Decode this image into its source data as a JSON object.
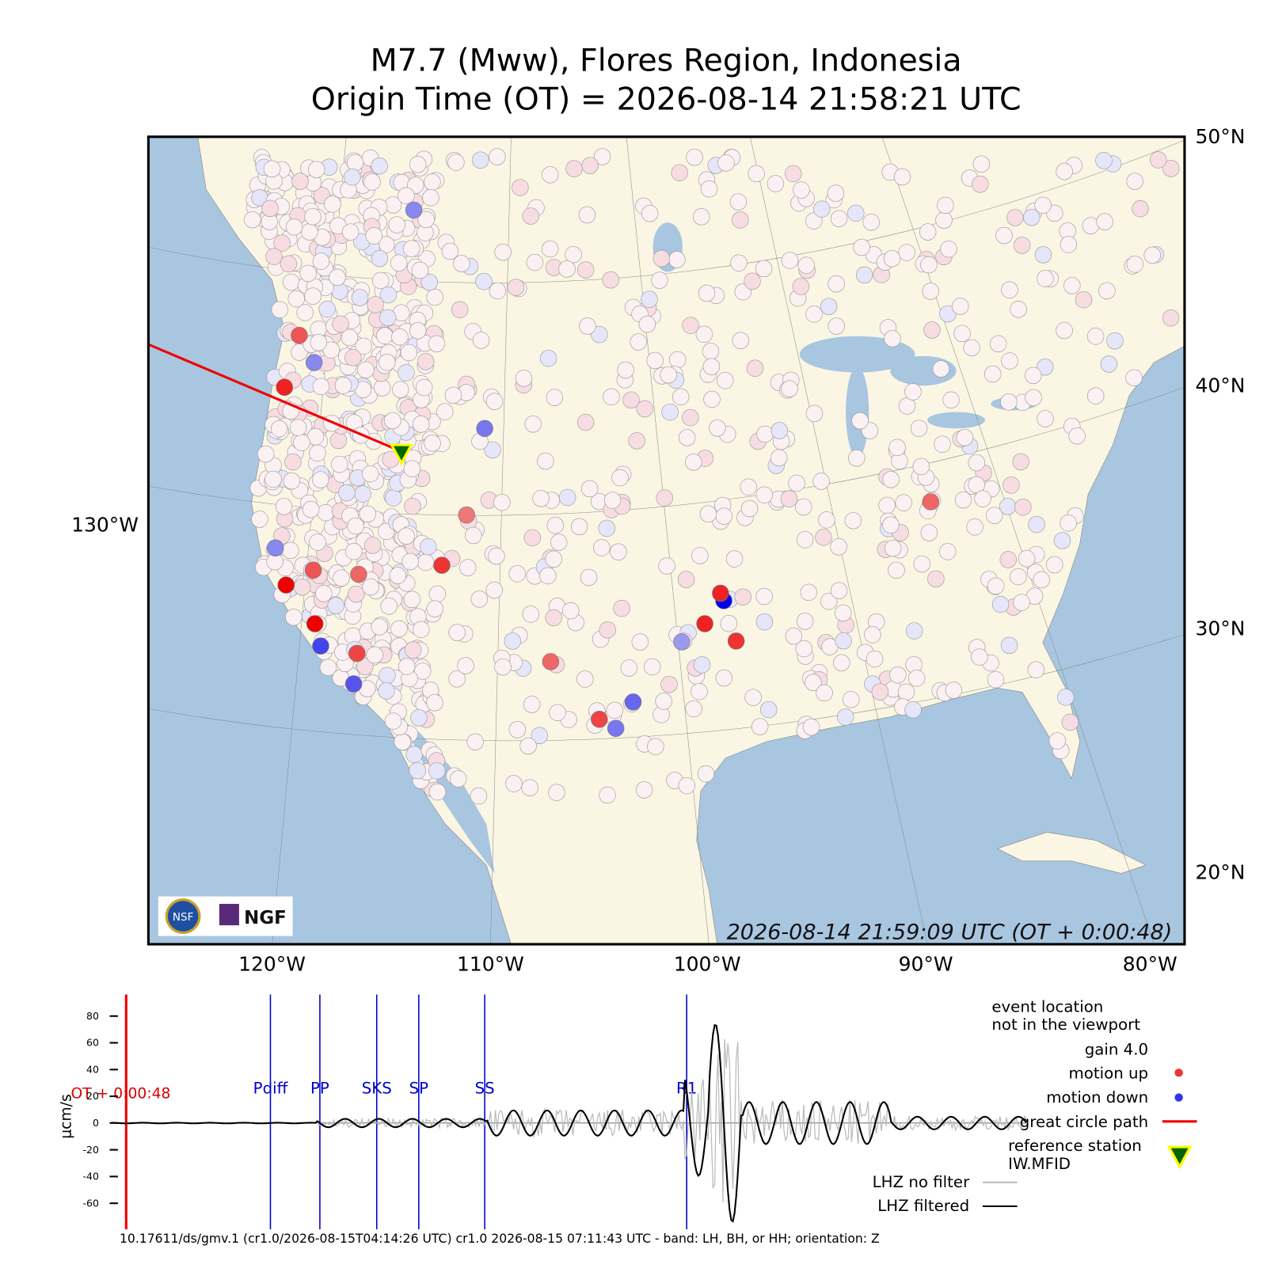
{
  "header": {
    "title": "M7.7 (Mww), Flores Region, Indonesia",
    "subtitle": "Origin Time (OT) = 2026-08-14 21:58:21 UTC"
  },
  "map": {
    "timestamp": "2026-08-14 21:59:09 UTC (OT + 0:00:48)",
    "lat_labels": [
      "50°N",
      "40°N",
      "30°N",
      "20°N"
    ],
    "lon_labels": [
      "120°W",
      "110°W",
      "100°W",
      "90°W",
      "80°W"
    ],
    "side_label": "130°W",
    "logo_left": "NSF",
    "logo_right": "NGF"
  },
  "seismogram": {
    "y_label": "μcm/s",
    "ylim": [
      -72,
      95
    ],
    "yticks": [
      80,
      60,
      40,
      20,
      0,
      -20,
      -40,
      -60
    ],
    "time_marker": "OT + 0:00:48",
    "phases": [
      "Pdiff",
      "PP",
      "SKS",
      "SP",
      "SS",
      "R1"
    ]
  },
  "legend": {
    "event_note_1": "event location",
    "event_note_2": "not in the viewport",
    "gain": "gain  4.0",
    "motion_up": "motion up",
    "motion_down": "motion down",
    "great_circle": "great circle path",
    "reference_1": "reference station",
    "reference_2": "IW.MFID",
    "raw": "LHZ no filter",
    "filtered": "LHZ filtered"
  },
  "footer": "10.17611/ds/gmv.1 (cr1.0/2026-08-15T04:14:26 UTC) cr1.0 2026-08-15 07:11:43 UTC - band: LH, BH, or HH; orientation: Z"
}
